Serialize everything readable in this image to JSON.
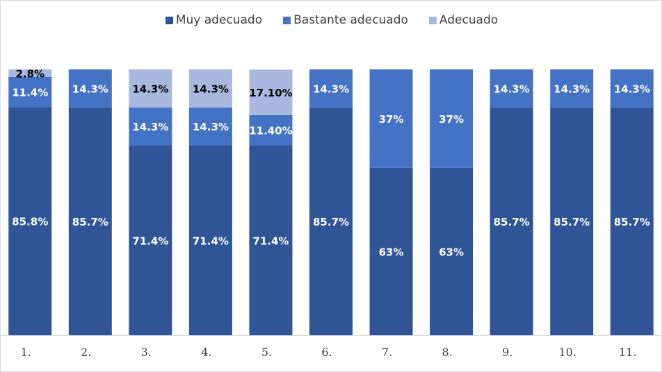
{
  "chart_data": {
    "type": "bar",
    "stacked": true,
    "categories": [
      "1.",
      "2.",
      "3.",
      "4.",
      "5.",
      "6.",
      "7.",
      "8.",
      "9.",
      "10.",
      "11."
    ],
    "series": [
      {
        "name": "Muy adecuado",
        "color": "#2f5597",
        "values": [
          85.8,
          85.7,
          71.4,
          71.4,
          71.4,
          85.7,
          63,
          63,
          85.7,
          85.7,
          85.7
        ],
        "labels": [
          "85.8%",
          "85.7%",
          "71.4%",
          "71.4%",
          "71.4%",
          "85.7%",
          "63%",
          "63%",
          "85.7%",
          "85.7%",
          "85.7%"
        ]
      },
      {
        "name": "Bastante adecuado",
        "color": "#4472c4",
        "values": [
          11.4,
          14.3,
          14.3,
          14.3,
          11.4,
          14.3,
          37,
          37,
          14.3,
          14.3,
          14.3
        ],
        "labels": [
          "11.4%",
          "14.3%",
          "14.3%",
          "14.3%",
          "11.40%",
          "14.3%",
          "37%",
          "37%",
          "14.3%",
          "14.3%",
          "14.3%"
        ]
      },
      {
        "name": "Adecuado",
        "color": "#a9b8de",
        "values": [
          2.8,
          0,
          14.3,
          14.3,
          17.1,
          0,
          0,
          0,
          0,
          0,
          0
        ],
        "labels": [
          "2.8%",
          "",
          "14.3%",
          "14.3%",
          "17.10%",
          "",
          "",
          "",
          "",
          "",
          ""
        ]
      }
    ],
    "ylim": [
      0,
      100
    ],
    "legend_position": "top-center",
    "grid": false
  }
}
